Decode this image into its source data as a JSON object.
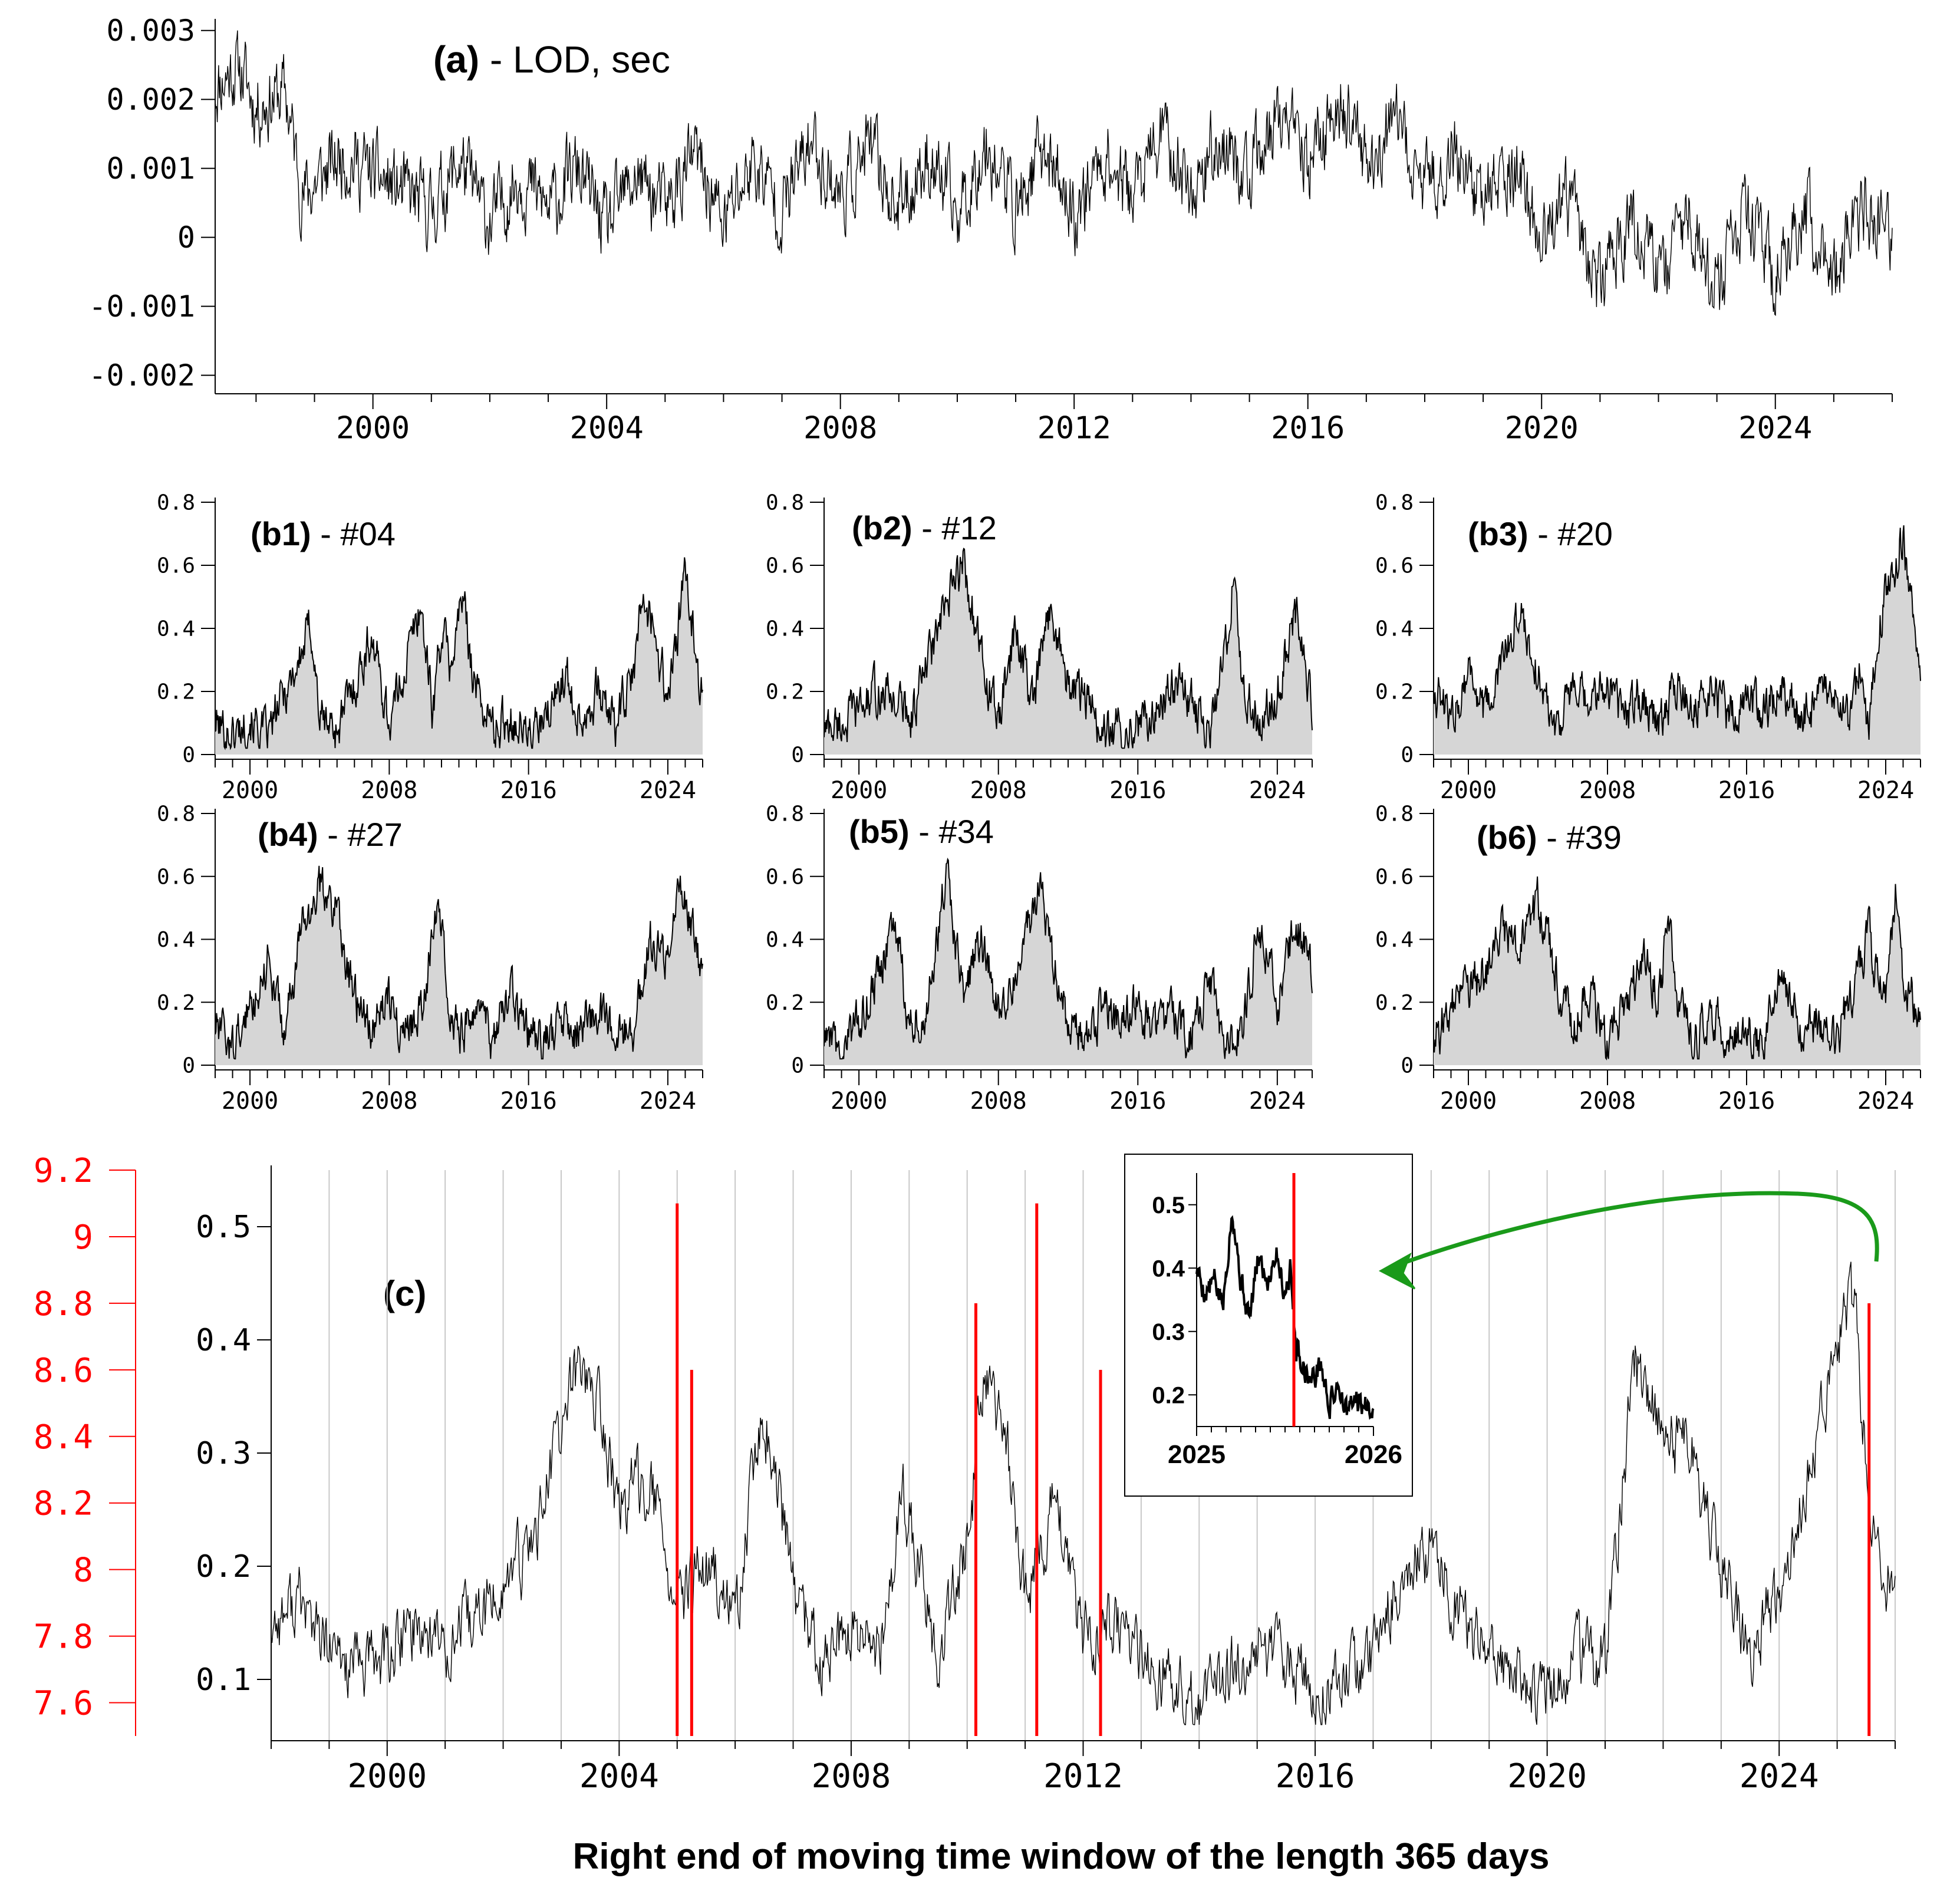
{
  "chart_data": [
    {
      "id": "a",
      "type": "line",
      "title_bold": "(a)",
      "title_rest": " - LOD, sec",
      "xlabel": "",
      "ylabel": "",
      "xlim": [
        1997.3,
        2026.0
      ],
      "ylim": [
        -0.0022,
        0.0031
      ],
      "y_ticks": [
        0.003,
        0.002,
        0.001,
        0,
        -0.001,
        -0.002
      ],
      "y_tick_labels": [
        "0.003",
        "0.002",
        "0.001",
        "0",
        "-0.001",
        "-0.002"
      ],
      "x_ticks": [
        2000,
        2004,
        2008,
        2012,
        2016,
        2020,
        2024
      ],
      "x_tick_labels": [
        "2000",
        "2004",
        "2008",
        "2012",
        "2016",
        "2020",
        "2024"
      ],
      "grid": false,
      "color": "#000000",
      "x": [
        1997.3,
        1997.7,
        1998.0,
        1998.5,
        1998.8,
        1999.5,
        2000.2,
        2001.0,
        2001.5,
        2002.0,
        2002.5,
        2003.0,
        2003.5,
        2004.0,
        2004.5,
        2005.0,
        2005.5,
        2006.0,
        2006.5,
        2007.0,
        2007.5,
        2008.0,
        2008.5,
        2009.0,
        2009.5,
        2010.0,
        2010.5,
        2011.0,
        2011.5,
        2012.0,
        2012.5,
        2013.0,
        2013.5,
        2014.0,
        2014.5,
        2015.0,
        2015.5,
        2016.0,
        2016.5,
        2017.0,
        2017.5,
        2018.0,
        2018.5,
        2019.0,
        2019.5,
        2020.0,
        2020.5,
        2021.0,
        2021.5,
        2022.0,
        2022.5,
        2023.0,
        2023.5,
        2024.0,
        2024.5,
        2025.0,
        2025.5,
        2026.0
      ],
      "y": [
        0.0022,
        0.0025,
        0.0019,
        0.0021,
        0.0006,
        0.0012,
        0.0008,
        0.0004,
        0.0011,
        0.0002,
        0.0009,
        0.0004,
        0.001,
        0.0001,
        0.0009,
        0.0004,
        0.0012,
        0.0002,
        0.0011,
        0.0004,
        0.0014,
        0.0006,
        0.0013,
        0.0004,
        0.0012,
        0.0003,
        0.0014,
        0.0004,
        0.0013,
        0.0003,
        0.0012,
        0.0006,
        0.0015,
        0.0007,
        0.0014,
        0.0008,
        0.0018,
        0.001,
        0.002,
        0.0011,
        0.0016,
        0.0007,
        0.0013,
        0.0005,
        0.0011,
        -0.0001,
        0.0005,
        -0.0007,
        0.0003,
        -0.0006,
        0.0004,
        -0.0008,
        0.0003,
        -0.0006,
        0.0004,
        -0.0005,
        0.0004,
        -0.0001
      ]
    },
    {
      "id": "b1",
      "type": "area",
      "title_bold": "(b1)",
      "title_rest": " - #04",
      "xlim": [
        1998.0,
        2026.0
      ],
      "ylim": [
        0,
        0.8
      ],
      "y_ticks": [
        0.8,
        0.6,
        0.4,
        0.2,
        0
      ],
      "y_tick_labels": [
        "0.8",
        "0.6",
        "0.4",
        "0.2",
        "0"
      ],
      "x_ticks": [
        2000,
        2008,
        2016,
        2024
      ],
      "x_tick_labels": [
        "2000",
        "2008",
        "2016",
        "2024"
      ],
      "x": [
        1998,
        1999,
        2000,
        2001,
        2002,
        2003,
        2003.5,
        2004,
        2005,
        2006,
        2007,
        2008,
        2009,
        2009.8,
        2010.5,
        2011,
        2011.5,
        2012.2,
        2013,
        2014,
        2015,
        2016,
        2017,
        2018,
        2019,
        2020,
        2021,
        2022,
        2022.5,
        2023,
        2024,
        2024.6,
        2025,
        2026
      ],
      "y": [
        0.1,
        0.06,
        0.12,
        0.05,
        0.2,
        0.32,
        0.42,
        0.12,
        0.08,
        0.22,
        0.38,
        0.1,
        0.3,
        0.48,
        0.14,
        0.4,
        0.28,
        0.5,
        0.2,
        0.08,
        0.12,
        0.06,
        0.1,
        0.26,
        0.12,
        0.2,
        0.1,
        0.24,
        0.48,
        0.45,
        0.18,
        0.4,
        0.56,
        0.18
      ]
    },
    {
      "id": "b2",
      "type": "area",
      "title_bold": "(b2)",
      "title_rest": " - #12",
      "xlim": [
        1998.0,
        2026.0
      ],
      "ylim": [
        0,
        0.8
      ],
      "y_ticks": [
        0.8,
        0.6,
        0.4,
        0.2,
        0
      ],
      "y_tick_labels": [
        "0.8",
        "0.6",
        "0.4",
        "0.2",
        "0"
      ],
      "x_ticks": [
        2000,
        2008,
        2016,
        2024
      ],
      "x_tick_labels": [
        "2000",
        "2008",
        "2016",
        "2024"
      ],
      "x": [
        1998,
        1999,
        2000,
        2001,
        2002,
        2003,
        2004,
        2005,
        2006,
        2007,
        2008,
        2009,
        2010,
        2011,
        2012,
        2013,
        2014,
        2015,
        2016,
        2017,
        2018,
        2019,
        2020,
        2021,
        2021.5,
        2022,
        2023,
        2024,
        2025,
        2026
      ],
      "y": [
        0.08,
        0.1,
        0.14,
        0.2,
        0.18,
        0.12,
        0.3,
        0.46,
        0.62,
        0.3,
        0.1,
        0.4,
        0.15,
        0.48,
        0.22,
        0.18,
        0.06,
        0.08,
        0.1,
        0.12,
        0.24,
        0.18,
        0.06,
        0.3,
        0.6,
        0.2,
        0.1,
        0.2,
        0.46,
        0.16
      ]
    },
    {
      "id": "b3",
      "type": "area",
      "title_bold": "(b3)",
      "title_rest": " - #20",
      "xlim": [
        1998.0,
        2026.0
      ],
      "ylim": [
        0,
        0.8
      ],
      "y_ticks": [
        0.8,
        0.6,
        0.4,
        0.2,
        0
      ],
      "y_tick_labels": [
        "0.8",
        "0.6",
        "0.4",
        "0.2",
        "0"
      ],
      "x_ticks": [
        2000,
        2008,
        2016,
        2024
      ],
      "x_tick_labels": [
        "2000",
        "2008",
        "2016",
        "2024"
      ],
      "x": [
        1998,
        1999,
        2000,
        2001,
        2002,
        2003,
        2004,
        2005,
        2006,
        2007,
        2008,
        2009,
        2010,
        2011,
        2012,
        2013,
        2014,
        2015,
        2016,
        2017,
        2018,
        2019,
        2020,
        2021,
        2022,
        2022.5,
        2023,
        2023.6,
        2024.5,
        2025,
        2026
      ],
      "y": [
        0.22,
        0.1,
        0.28,
        0.12,
        0.3,
        0.46,
        0.25,
        0.1,
        0.2,
        0.14,
        0.24,
        0.12,
        0.2,
        0.1,
        0.22,
        0.14,
        0.2,
        0.12,
        0.18,
        0.14,
        0.2,
        0.12,
        0.16,
        0.18,
        0.1,
        0.28,
        0.08,
        0.4,
        0.6,
        0.7,
        0.22
      ]
    },
    {
      "id": "b4",
      "type": "area",
      "title_bold": "(b4)",
      "title_rest": " - #27",
      "xlim": [
        1998.0,
        2026.0
      ],
      "ylim": [
        0,
        0.8
      ],
      "y_ticks": [
        0.8,
        0.6,
        0.4,
        0.2,
        0
      ],
      "y_tick_labels": [
        "0.8",
        "0.6",
        "0.4",
        "0.2",
        "0"
      ],
      "x_ticks": [
        2000,
        2008,
        2016,
        2024
      ],
      "x_tick_labels": [
        "2000",
        "2008",
        "2016",
        "2024"
      ],
      "x": [
        1998,
        1999,
        2000,
        2001,
        2002,
        2003,
        2004,
        2005,
        2006,
        2007,
        2008,
        2009,
        2010,
        2010.8,
        2011.5,
        2012,
        2013,
        2014,
        2015,
        2016,
        2017,
        2018,
        2019,
        2020,
        2021,
        2022,
        2023,
        2024,
        2024.6,
        2025,
        2026
      ],
      "y": [
        0.12,
        0.05,
        0.18,
        0.34,
        0.1,
        0.44,
        0.56,
        0.5,
        0.2,
        0.12,
        0.22,
        0.1,
        0.18,
        0.58,
        0.2,
        0.1,
        0.16,
        0.08,
        0.22,
        0.1,
        0.08,
        0.12,
        0.1,
        0.18,
        0.08,
        0.12,
        0.4,
        0.3,
        0.62,
        0.55,
        0.28
      ]
    },
    {
      "id": "b5",
      "type": "area",
      "title_bold": "(b5)",
      "title_rest": " - #34",
      "xlim": [
        1998.0,
        2026.0
      ],
      "ylim": [
        0,
        0.8
      ],
      "y_ticks": [
        0.8,
        0.6,
        0.4,
        0.2,
        0
      ],
      "y_tick_labels": [
        "0.8",
        "0.6",
        "0.4",
        "0.2",
        "0"
      ],
      "x_ticks": [
        2000,
        2008,
        2016,
        2024
      ],
      "x_tick_labels": [
        "2000",
        "2008",
        "2016",
        "2024"
      ],
      "x": [
        1998,
        1999,
        2000,
        2001,
        2002,
        2003,
        2004,
        2005,
        2006,
        2007,
        2008,
        2009,
        2010,
        2010.5,
        2011,
        2012,
        2013,
        2014,
        2015,
        2016,
        2017,
        2018,
        2019,
        2020,
        2021,
        2022,
        2023,
        2024,
        2025,
        2026
      ],
      "y": [
        0.08,
        0.04,
        0.14,
        0.28,
        0.44,
        0.12,
        0.2,
        0.6,
        0.22,
        0.4,
        0.18,
        0.3,
        0.5,
        0.62,
        0.34,
        0.14,
        0.08,
        0.18,
        0.12,
        0.2,
        0.1,
        0.16,
        0.08,
        0.28,
        0.06,
        0.12,
        0.46,
        0.18,
        0.44,
        0.3
      ]
    },
    {
      "id": "b6",
      "type": "area",
      "title_bold": "(b6)",
      "title_rest": " - #39",
      "xlim": [
        1998.0,
        2026.0
      ],
      "ylim": [
        0,
        0.8
      ],
      "y_ticks": [
        0.8,
        0.6,
        0.4,
        0.2,
        0
      ],
      "y_tick_labels": [
        "0.8",
        "0.6",
        "0.4",
        "0.2",
        "0"
      ],
      "x_ticks": [
        2000,
        2008,
        2016,
        2024
      ],
      "x_tick_labels": [
        "2000",
        "2008",
        "2016",
        "2024"
      ],
      "x": [
        1998,
        1999,
        2000,
        2001,
        2002,
        2003,
        2004,
        2005,
        2006,
        2007,
        2008,
        2009,
        2010,
        2011,
        2011.5,
        2012,
        2013,
        2014,
        2015,
        2016,
        2017,
        2018,
        2019,
        2020,
        2021,
        2022,
        2023,
        2024,
        2024.6,
        2025,
        2026
      ],
      "y": [
        0.08,
        0.18,
        0.24,
        0.3,
        0.44,
        0.36,
        0.52,
        0.3,
        0.12,
        0.24,
        0.06,
        0.18,
        0.34,
        0.22,
        0.5,
        0.2,
        0.08,
        0.16,
        0.1,
        0.12,
        0.08,
        0.28,
        0.1,
        0.14,
        0.08,
        0.2,
        0.4,
        0.18,
        0.58,
        0.3,
        0.12
      ]
    },
    {
      "id": "c",
      "type": "line",
      "title_bold": "(c)",
      "title_rest": "",
      "xlabel": "Right end of moving time window of the length 365 days",
      "xlim": [
        1998.0,
        2026.0
      ],
      "ylim": [
        0.05,
        0.55
      ],
      "y_ticks": [
        0.5,
        0.4,
        0.3,
        0.2,
        0.1
      ],
      "y_tick_labels": [
        "0.5",
        "0.4",
        "0.3",
        "0.2",
        "0.1"
      ],
      "secondary_ylim": [
        7.5,
        9.2
      ],
      "secondary_y_ticks": [
        9.2,
        9,
        8.8,
        8.6,
        8.4,
        8.2,
        8,
        7.8,
        7.6
      ],
      "secondary_y_tick_labels": [
        "9.2",
        "9",
        "8.8",
        "8.6",
        "8.4",
        "8.2",
        "8",
        "7.8",
        "7.6"
      ],
      "secondary_axis_color": "#ff0000",
      "x_ticks": [
        2000,
        2004,
        2008,
        2012,
        2016,
        2020,
        2024
      ],
      "x_tick_labels": [
        "2000",
        "2004",
        "2008",
        "2012",
        "2016",
        "2020",
        "2024"
      ],
      "grid": "vertical, yearly",
      "color": "#000000",
      "x": [
        1998.0,
        1998.5,
        1999.0,
        1999.5,
        2000.0,
        2000.5,
        2001.0,
        2001.5,
        2002.0,
        2002.5,
        2003.0,
        2003.3,
        2003.6,
        2004.0,
        2004.5,
        2005.0,
        2005.5,
        2006.0,
        2006.5,
        2007.0,
        2007.5,
        2008.0,
        2008.5,
        2008.9,
        2009.5,
        2010.0,
        2010.3,
        2010.7,
        2011.0,
        2011.5,
        2012.0,
        2012.5,
        2013.0,
        2013.5,
        2014.0,
        2014.5,
        2015.0,
        2015.5,
        2016.0,
        2016.5,
        2017.0,
        2017.5,
        2018.0,
        2018.5,
        2019.0,
        2019.5,
        2020.0,
        2020.5,
        2021.0,
        2021.5,
        2022.0,
        2022.5,
        2023.0,
        2023.5,
        2024.0,
        2024.5,
        2025.0,
        2025.3,
        2025.6,
        2026.0
      ],
      "y": [
        0.15,
        0.17,
        0.12,
        0.11,
        0.12,
        0.15,
        0.13,
        0.15,
        0.18,
        0.22,
        0.32,
        0.38,
        0.35,
        0.25,
        0.28,
        0.16,
        0.2,
        0.15,
        0.34,
        0.18,
        0.11,
        0.14,
        0.12,
        0.27,
        0.12,
        0.22,
        0.36,
        0.3,
        0.17,
        0.26,
        0.13,
        0.15,
        0.12,
        0.1,
        0.07,
        0.1,
        0.14,
        0.12,
        0.09,
        0.11,
        0.12,
        0.2,
        0.22,
        0.16,
        0.12,
        0.1,
        0.08,
        0.12,
        0.11,
        0.38,
        0.32,
        0.3,
        0.2,
        0.12,
        0.18,
        0.28,
        0.4,
        0.44,
        0.22,
        0.18
      ],
      "event_lines": [
        {
          "x": 2005.0,
          "magnitude": 9.1
        },
        {
          "x": 2005.25,
          "magnitude": 8.6
        },
        {
          "x": 2010.15,
          "magnitude": 8.8
        },
        {
          "x": 2011.2,
          "magnitude": 9.1
        },
        {
          "x": 2012.3,
          "magnitude": 8.6
        },
        {
          "x": 2025.55,
          "magnitude": 8.8
        }
      ],
      "event_line_color": "#ff0000"
    },
    {
      "id": "c_inset",
      "type": "line",
      "title": "",
      "xlim": [
        2025.0,
        2026.0
      ],
      "ylim": [
        0.15,
        0.55
      ],
      "y_ticks": [
        0.5,
        0.4,
        0.3,
        0.2
      ],
      "y_tick_labels": [
        "0.5",
        "0.4",
        "0.3",
        "0.2"
      ],
      "x_ticks": [
        2025,
        2026
      ],
      "x_tick_labels": [
        "2025",
        "2026"
      ],
      "color": "#000000",
      "event_line_x": 2025.55,
      "arrow_color": "#1a9a1a",
      "x": [
        2025.0,
        2025.05,
        2025.1,
        2025.15,
        2025.2,
        2025.25,
        2025.3,
        2025.35,
        2025.4,
        2025.45,
        2025.5,
        2025.53,
        2025.56,
        2025.6,
        2025.65,
        2025.7,
        2025.75,
        2025.8,
        2025.85,
        2025.9,
        2025.95,
        2026.0
      ],
      "y": [
        0.4,
        0.36,
        0.38,
        0.34,
        0.5,
        0.38,
        0.32,
        0.42,
        0.38,
        0.43,
        0.36,
        0.4,
        0.28,
        0.25,
        0.22,
        0.25,
        0.18,
        0.22,
        0.17,
        0.19,
        0.18,
        0.19
      ]
    }
  ]
}
